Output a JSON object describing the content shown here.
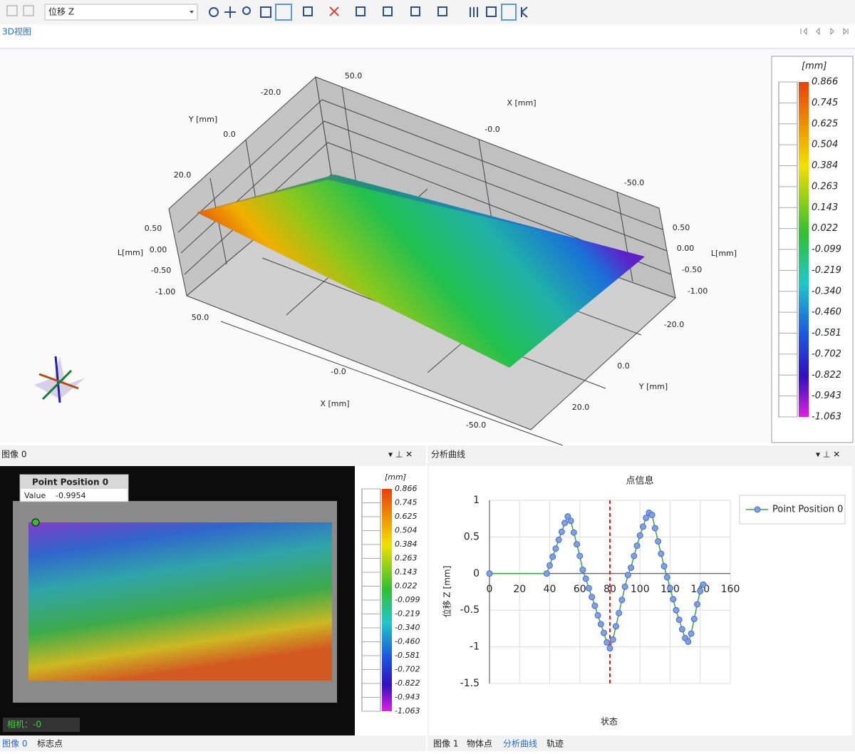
{
  "toolbar": {
    "dropdown": "位移 Z"
  },
  "view3d": {
    "tab": "3D视图",
    "labels": [
      "50.0",
      "-20.0",
      "Y [mm]",
      "0.0",
      "20.0",
      "X [mm]",
      "-0.0",
      "-50.0",
      "0.50",
      "L[mm]",
      "0.00",
      "-0.50",
      "-1.00",
      "0.50",
      "0.00",
      "L[mm]",
      "-0.50",
      "-1.00",
      "50.0",
      "-0.0",
      "X [mm]",
      "-50.0",
      "-20.0",
      "0.0",
      "Y [mm]",
      "20.0"
    ]
  },
  "colorbar": {
    "unit": "[mm]",
    "ticks": [
      0.866,
      0.745,
      0.625,
      0.504,
      0.384,
      0.263,
      0.143,
      0.022,
      -0.099,
      -0.219,
      -0.34,
      -0.46,
      -0.581,
      -0.702,
      -0.822,
      -0.943,
      -1.063
    ],
    "tick_labels": [
      "0.866",
      "0.745",
      "0.625",
      "0.504",
      "0.384",
      "0.263",
      "0.143",
      "0.022",
      "-0.099",
      "-0.219",
      "-0.340",
      "-0.460",
      "-0.581",
      "-0.702",
      "-0.822",
      "-0.943",
      "-1.063"
    ]
  },
  "image_panel": {
    "title": "图像 0",
    "overlay_title": "Point Position 0",
    "value_label": "Value",
    "value": "-0.9954",
    "camera": "相机：-0",
    "tabs": [
      "图像 0",
      "标志点"
    ]
  },
  "curve_panel": {
    "title": "分析曲线",
    "tabs": [
      "图像 1",
      "物体点",
      "分析曲线",
      "轨迹"
    ]
  },
  "chart_data": {
    "type": "line",
    "title": "点信息",
    "x_label": "状态",
    "y_label": "位移 Z [mm]",
    "x": [
      0,
      38,
      40,
      42,
      44,
      46,
      48,
      50,
      52,
      54,
      56,
      58,
      60,
      62,
      64,
      66,
      68,
      70,
      72,
      74,
      76,
      78,
      80,
      82,
      84,
      86,
      88,
      90,
      92,
      94,
      96,
      98,
      100,
      102,
      104,
      106,
      108,
      110,
      112,
      114,
      116,
      118,
      120,
      122,
      124,
      126,
      128,
      130,
      132,
      134,
      136,
      138,
      140,
      142
    ],
    "series": [
      {
        "name": "Point Position 0",
        "color": "#7f9fe6",
        "line_color": "#3aa83a",
        "values": [
          0,
          0,
          0.11,
          0.23,
          0.34,
          0.46,
          0.57,
          0.69,
          0.78,
          0.72,
          0.56,
          0.4,
          0.24,
          0.05,
          -0.07,
          -0.2,
          -0.32,
          -0.44,
          -0.57,
          -0.69,
          -0.81,
          -0.94,
          -1.02,
          -0.9,
          -0.72,
          -0.54,
          -0.36,
          -0.18,
          -0.02,
          0.08,
          0.24,
          0.38,
          0.52,
          0.64,
          0.76,
          0.83,
          0.8,
          0.62,
          0.44,
          0.27,
          0.1,
          -0.05,
          -0.2,
          -0.35,
          -0.5,
          -0.63,
          -0.76,
          -0.88,
          -0.93,
          -0.82,
          -0.62,
          -0.42,
          -0.24,
          -0.15
        ]
      }
    ],
    "xlim": [
      0,
      160
    ],
    "xticks": [
      0,
      20,
      40,
      60,
      80,
      100,
      120,
      140,
      160
    ],
    "ylim": [
      -1.5,
      1
    ],
    "yticks": [
      -1.5,
      -1,
      -0.5,
      0,
      0.5,
      1
    ],
    "grid": true,
    "cursor_x": 80,
    "legend": "right"
  }
}
